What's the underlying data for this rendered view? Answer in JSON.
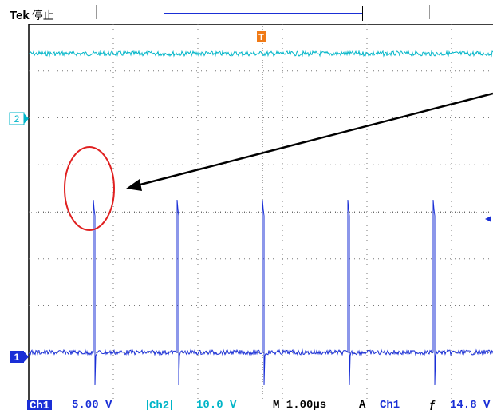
{
  "header": {
    "brand": "Tek",
    "acq_state": "停止"
  },
  "markers": {
    "channel2": "2",
    "channel1": "1",
    "trigger_position": "T"
  },
  "status_bar": {
    "ch1_label": "Ch1",
    "ch1_scale": "5.00 V",
    "ch2_label": "Ch2",
    "ch2_scale": "10.0 V",
    "timebase": "M 1.00µs",
    "trigger_mode": "A",
    "trigger_source": "Ch1",
    "trigger_slope": "ƒ",
    "trigger_level": "14.8 V"
  },
  "colors": {
    "ch1": "#1a2fd6",
    "ch2": "#00b5c8",
    "trigger": "#f07a16",
    "annotation_circle": "#e02020",
    "annotation_arrow": "#000000"
  },
  "traces": {
    "ch1_pulse_period_us": 1.0,
    "ch1_pulse_count": 5
  }
}
